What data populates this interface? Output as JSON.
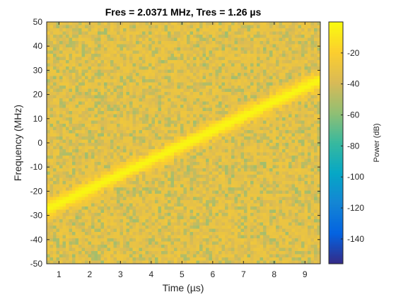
{
  "chart_data": {
    "type": "heatmap",
    "title": "Fres = 2.0371 MHz, Tres = 1.26 µs",
    "xlabel": "Time (µs)",
    "ylabel": "Frequency (MHz)",
    "xlim": [
      0.6,
      9.5
    ],
    "ylim": [
      -50,
      50
    ],
    "xticks": [
      1,
      2,
      3,
      4,
      5,
      6,
      7,
      8,
      9
    ],
    "yticks": [
      -50,
      -40,
      -30,
      -20,
      -10,
      0,
      10,
      20,
      30,
      40,
      50
    ],
    "colorbar": {
      "label": "Power (dB)",
      "range": [
        -156,
        0
      ],
      "ticks": [
        -140,
        -120,
        -100,
        -80,
        -60,
        -40,
        -20
      ],
      "colormap": "parula"
    },
    "signal": {
      "description": "linear chirp ridge",
      "start": {
        "time": 0.6,
        "frequency": -27.5
      },
      "end": {
        "time": 9.5,
        "frequency": 26
      },
      "power_db": -2
    },
    "background_noise_power_db": [
      -55,
      -25
    ]
  }
}
